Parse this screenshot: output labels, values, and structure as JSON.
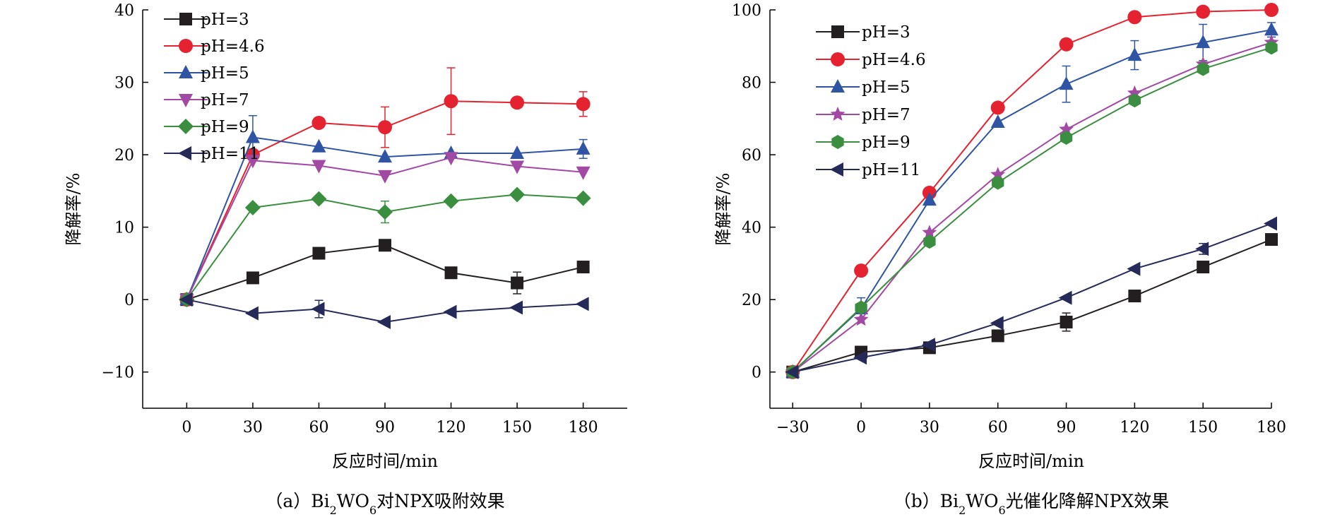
{
  "chart_data": [
    {
      "type": "line",
      "panel": "a",
      "caption_prefix": "（a）Bi",
      "caption_sub1": "2",
      "caption_mid": "WO",
      "caption_sub2": "6",
      "caption_suffix": "对NPX吸附效果",
      "xlabel": "反应时间/min",
      "ylabel": "降解率/%",
      "xlim": [
        -20,
        200
      ],
      "ylim": [
        -15,
        40
      ],
      "xticks": [
        0,
        30,
        60,
        90,
        120,
        150,
        180
      ],
      "yticks": [
        -10,
        0,
        10,
        20,
        30,
        40
      ],
      "ytick_labels": [
        "−10",
        "0",
        "10",
        "20",
        "30",
        "40"
      ],
      "grid": false,
      "legend_position": "top-left",
      "x": [
        0,
        30,
        60,
        90,
        120,
        150,
        180
      ],
      "series": [
        {
          "name": "pH=3",
          "color": "#231f20",
          "marker": "square",
          "values": [
            0,
            3.0,
            6.4,
            7.5,
            3.7,
            2.3,
            4.5
          ],
          "errors": [
            0,
            0,
            0,
            0.5,
            0,
            1.5,
            0
          ]
        },
        {
          "name": "pH=4.6",
          "color": "#e52330",
          "marker": "circle",
          "values": [
            0,
            20.0,
            24.4,
            23.8,
            27.4,
            27.2,
            27.0
          ],
          "errors": [
            0,
            0,
            0,
            2.8,
            4.6,
            0,
            1.7
          ]
        },
        {
          "name": "pH=5",
          "color": "#2f54a4",
          "marker": "triangle-up",
          "values": [
            0,
            22.4,
            21.1,
            19.7,
            20.2,
            20.2,
            20.8
          ],
          "errors": [
            0,
            3.0,
            0,
            0,
            0,
            0,
            1.3
          ]
        },
        {
          "name": "pH=7",
          "color": "#a249a4",
          "marker": "triangle-down",
          "values": [
            0,
            19.2,
            18.5,
            17.1,
            19.6,
            18.4,
            17.6
          ],
          "errors": [
            0,
            0,
            0,
            0,
            0,
            0,
            0
          ]
        },
        {
          "name": "pH=9",
          "color": "#3b8e3f",
          "marker": "diamond",
          "values": [
            0,
            12.7,
            13.9,
            12.1,
            13.6,
            14.5,
            14.0
          ],
          "errors": [
            0,
            0,
            0,
            1.5,
            0,
            0,
            0
          ]
        },
        {
          "name": "pH=11",
          "color": "#262a59",
          "marker": "triangle-left",
          "values": [
            0,
            -1.9,
            -1.3,
            -3.1,
            -1.7,
            -1.1,
            -0.6
          ],
          "errors": [
            0,
            0,
            1.2,
            0,
            0,
            0,
            0
          ]
        }
      ]
    },
    {
      "type": "line",
      "panel": "b",
      "caption_prefix": "（b）Bi",
      "caption_sub1": "2",
      "caption_mid": "WO",
      "caption_sub2": "6",
      "caption_suffix": "光催化降解NPX效果",
      "xlabel": "反应时间/min",
      "ylabel": "降解率/%",
      "xlim": [
        -40,
        180
      ],
      "ylim": [
        -10,
        100
      ],
      "xticks": [
        -30,
        0,
        30,
        60,
        90,
        120,
        150,
        180
      ],
      "xtick_labels": [
        "−30",
        "0",
        "30",
        "60",
        "90",
        "120",
        "150",
        "180"
      ],
      "yticks": [
        0,
        20,
        40,
        60,
        80,
        100
      ],
      "grid": false,
      "legend_position": "top-left",
      "x": [
        -30,
        0,
        30,
        60,
        90,
        120,
        150,
        180
      ],
      "series": [
        {
          "name": "pH=3",
          "color": "#231f20",
          "marker": "square",
          "values": [
            0,
            5.5,
            6.7,
            10.0,
            13.8,
            21.0,
            29.0,
            36.6
          ],
          "errors": [
            0,
            0,
            0,
            0,
            2.5,
            0,
            0,
            0
          ]
        },
        {
          "name": "pH=4.6",
          "color": "#e52330",
          "marker": "circle",
          "values": [
            0,
            28.0,
            49.5,
            73.0,
            90.5,
            98.0,
            99.5,
            100.0
          ],
          "errors": [
            0,
            0,
            0,
            0,
            0,
            0,
            0,
            0
          ]
        },
        {
          "name": "pH=5",
          "color": "#2f54a4",
          "marker": "triangle-up",
          "values": [
            0,
            17.5,
            47.5,
            69.0,
            79.5,
            87.5,
            91.0,
            94.5
          ],
          "errors": [
            0,
            3.0,
            0,
            0,
            5.0,
            4.0,
            5.0,
            2.0
          ]
        },
        {
          "name": "pH=7",
          "color": "#a249a4",
          "marker": "star",
          "values": [
            0,
            14.5,
            38.5,
            54.5,
            67.0,
            77.0,
            85.0,
            91.0
          ],
          "errors": [
            0,
            0,
            0,
            0,
            0,
            0,
            0,
            0
          ]
        },
        {
          "name": "pH=9",
          "color": "#3b8e3f",
          "marker": "hexagon",
          "values": [
            0,
            17.8,
            36.0,
            52.3,
            64.7,
            75.0,
            83.7,
            89.6
          ],
          "errors": [
            0,
            0,
            0,
            0,
            0,
            0,
            0,
            0
          ]
        },
        {
          "name": "pH=11",
          "color": "#262a59",
          "marker": "triangle-left",
          "values": [
            0,
            4.0,
            7.5,
            13.5,
            20.5,
            28.5,
            34.0,
            41.0
          ],
          "errors": [
            0,
            0,
            0,
            0,
            0,
            0,
            1.5,
            0
          ]
        }
      ]
    }
  ]
}
